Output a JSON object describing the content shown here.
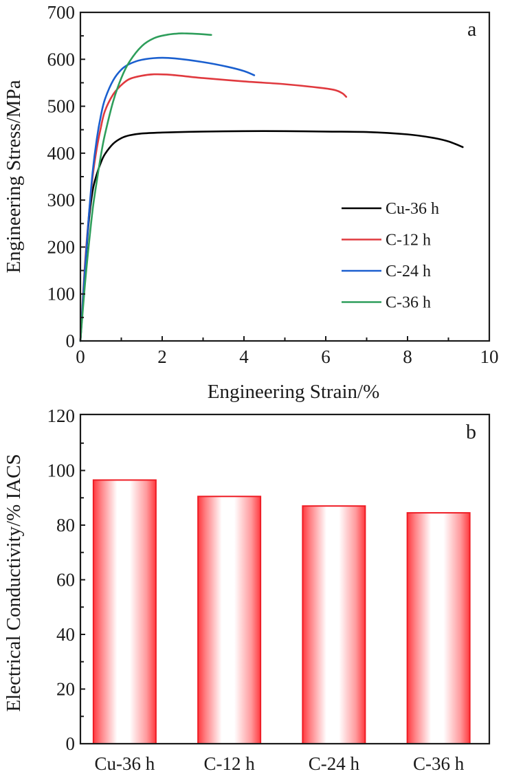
{
  "chart_data": [
    {
      "type": "line",
      "panel_label": "a",
      "title": "",
      "xlabel": "Engineering Strain/%",
      "ylabel": "Engineering Stress/MPa",
      "xlim": [
        0,
        10
      ],
      "ylim": [
        0,
        700
      ],
      "xticks": [
        0,
        2,
        4,
        6,
        8,
        10
      ],
      "yticks": [
        0,
        100,
        200,
        300,
        400,
        500,
        600,
        700
      ],
      "x_minor_step": 1,
      "y_minor_step": 50,
      "grid": false,
      "legend_position": "lower-right",
      "series": [
        {
          "name": "Cu-36 h",
          "color": "#000000",
          "x": [
            0,
            0.1,
            0.2,
            0.3,
            0.4,
            0.5,
            0.6,
            0.8,
            1.0,
            1.2,
            1.5,
            2.0,
            3.0,
            4.0,
            5.0,
            6.0,
            7.0,
            8.0,
            8.6,
            9.0,
            9.35
          ],
          "y": [
            0,
            130,
            250,
            320,
            355,
            380,
            398,
            420,
            432,
            438,
            442,
            444,
            446,
            447,
            447,
            446,
            445,
            440,
            433,
            425,
            413
          ]
        },
        {
          "name": "C-12 h",
          "color": "#e0393e",
          "x": [
            0,
            0.1,
            0.2,
            0.3,
            0.4,
            0.5,
            0.6,
            0.8,
            1.0,
            1.2,
            1.5,
            1.8,
            2.2,
            3.0,
            4.0,
            5.0,
            5.8,
            6.2,
            6.4,
            6.5
          ],
          "y": [
            0,
            150,
            260,
            350,
            410,
            455,
            490,
            525,
            545,
            558,
            565,
            568,
            567,
            560,
            553,
            547,
            540,
            535,
            528,
            520
          ]
        },
        {
          "name": "C-24 h",
          "color": "#1a5fcf",
          "x": [
            0,
            0.1,
            0.2,
            0.3,
            0.4,
            0.5,
            0.6,
            0.8,
            1.0,
            1.2,
            1.5,
            1.9,
            2.3,
            3.0,
            3.6,
            4.0,
            4.25
          ],
          "y": [
            0,
            140,
            260,
            360,
            430,
            480,
            515,
            555,
            578,
            590,
            599,
            603,
            602,
            594,
            584,
            575,
            566
          ]
        },
        {
          "name": "C-36 h",
          "color": "#2e9e5b",
          "x": [
            0,
            0.1,
            0.2,
            0.3,
            0.4,
            0.5,
            0.6,
            0.8,
            1.0,
            1.2,
            1.5,
            1.8,
            2.1,
            2.4,
            2.6,
            2.9,
            3.2
          ],
          "y": [
            0,
            110,
            200,
            280,
            340,
            395,
            440,
            510,
            560,
            595,
            628,
            645,
            652,
            655,
            655,
            654,
            652
          ]
        }
      ]
    },
    {
      "type": "bar",
      "panel_label": "b",
      "title": "",
      "xlabel": "",
      "ylabel": "Electrical Conductivity/% IACS",
      "categories": [
        "Cu-36 h",
        "C-12 h",
        "C-24 h",
        "C-36 h"
      ],
      "values": [
        96.5,
        90.5,
        87.0,
        84.5
      ],
      "ylim": [
        0,
        120
      ],
      "yticks": [
        0,
        20,
        40,
        60,
        80,
        100,
        120
      ],
      "y_minor_step": 10,
      "grid": false,
      "bar_color": "#ee1c24",
      "bar_fill": "horizontal red-white-red gradient"
    }
  ]
}
